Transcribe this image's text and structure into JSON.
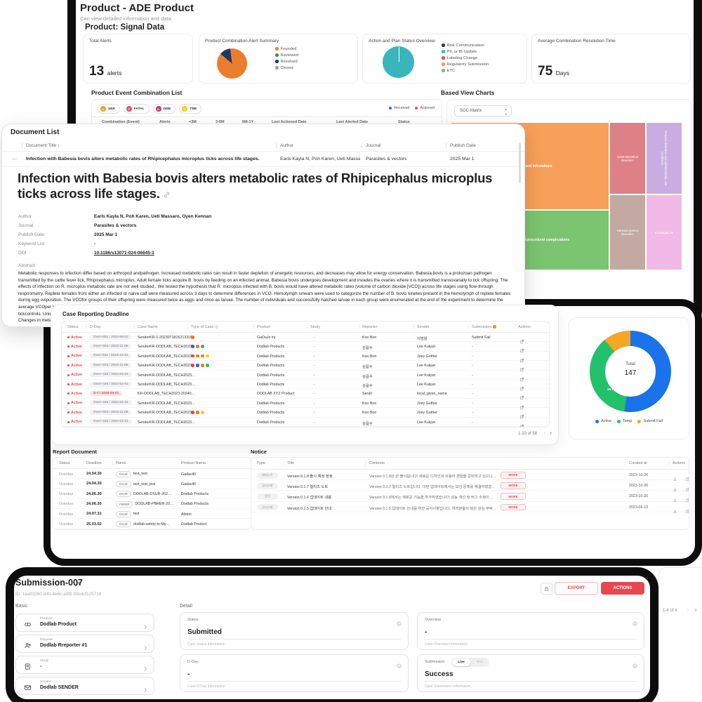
{
  "dashboard": {
    "title": "Product - ADE Product",
    "subtitle": "Can view detailed information and data.",
    "section_title": "Product: Signal Data",
    "cards": {
      "total_alerts": {
        "label": "Total Alerts",
        "value": "13",
        "unit": "alerts"
      },
      "alert_summary": {
        "label": "Product Combination Alert Summary",
        "pie": {
          "values": [
            12,
            88
          ],
          "colors": [
            "#1e3a5f",
            "#ed7d2e"
          ],
          "from_deg": -50
        },
        "legend": [
          {
            "label": "Founded",
            "color": "#ed7d2e"
          },
          {
            "label": "Reviewed",
            "color": "#3a915f"
          },
          {
            "label": "Resolved",
            "color": "#1e3a5f"
          },
          {
            "label": "Closed",
            "color": "#9aa0a6"
          }
        ]
      },
      "action_plan": {
        "label": "Action and Plan Status Overview",
        "pie": {
          "values": [
            100
          ],
          "colors": [
            "#3ab5bc"
          ]
        },
        "legend": [
          {
            "label": "Risk Communication",
            "color": "#1e3a5f"
          },
          {
            "label": "PIL or IB Update",
            "color": "#3ab5bc"
          },
          {
            "label": "Labeling Change",
            "color": "#e8505b"
          },
          {
            "label": "Regulatory Submission",
            "color": "#f0955a"
          },
          {
            "label": "ETC",
            "color": "#9aa0a6"
          }
        ]
      },
      "resolution_time": {
        "label": "Average Combination Resolution Time",
        "value": "75",
        "unit": "Days"
      }
    },
    "combination_list": {
      "title": "Product Event Combination List",
      "badges": [
        {
          "letter": "S",
          "label": "SER",
          "color": "#f59b2d"
        },
        {
          "letter": "F",
          "label": "FATAL",
          "color": "#e8505b"
        },
        {
          "letter": "D",
          "label": "DME",
          "color": "#d6336c"
        },
        {
          "letter": "T",
          "label": "TME",
          "color": "#f2d024"
        }
      ],
      "legend": [
        {
          "label": "Received",
          "color": "#2563eb"
        },
        {
          "label": "Actioned",
          "color": "#e8505b"
        }
      ],
      "columns": [
        "Combination (Event)",
        "Alerts",
        "<3M",
        "3-6M",
        "6M-1Y",
        "Last Actioned Date",
        "Last Alerted Date",
        "Status"
      ]
    },
    "based_view": {
      "title": "Based View Charts",
      "dropdown_value": "SOC-Matrix",
      "treemap": [
        {
          "label": "Infections and infestations",
          "color": "#f7a059"
        },
        {
          "label": "Injury, poisoning and procedural complications",
          "color": "#7bc470"
        },
        {
          "label": "Gastrointestinal disorders",
          "color": "#dd8186"
        },
        {
          "label": "Nervous system disorders",
          "color": "#c2a9a1"
        },
        {
          "label": "General disorders and administration site conditions",
          "color": "#c9ade0"
        },
        {
          "label": "Investigations",
          "color": "#f0b9e6"
        }
      ]
    }
  },
  "document_list": {
    "title": "Document List",
    "columns": [
      "Document Title",
      "Author",
      "Journal",
      "Publish Date"
    ],
    "sort_icon": "↓",
    "row": {
      "title": "Infection with Babesia bovis alters metabolic rates of Rhipicephalus microplus ticks across life stages.",
      "author": "Earls Kayla N, Poh Karen, Ueti Massaro, Oy...",
      "journal": "Parasites & vectors",
      "publish_date": "2025 Mar 1"
    },
    "article": {
      "title": "Infection with Babesia bovis alters metabolic rates of Rhipicephalus microplus ticks across life stages.",
      "meta": [
        {
          "label": "Author",
          "value": "Earls Kayla N, Poh Karen, Ueti Massaro, Oyen Kennan",
          "link": false
        },
        {
          "label": "Journal",
          "value": "Parasites & vectors",
          "link": false
        },
        {
          "label": "Publish Date",
          "value": "2025 Mar 1",
          "link": false
        },
        {
          "label": "Keyword List",
          "value": "-",
          "link": false
        },
        {
          "label": "DOI",
          "value": "10.1186/s13071-024-06645-3",
          "link": true
        }
      ],
      "abstract_label": "Abstract",
      "abstract": "Metabolic responses to infection differ based on arthropod andpathogen. Increased metabolic rates can result in faster depletion of energetic resources, and decreases may allow for energy conservation. Babesia bovis is a protozoan pathogen transmitted by the cattle fever tick, Rhipicephalus microplus. Adult female ticks acquire B. bovis by feeding on an infected animal. Babesia bovis undergoes development and invades the ovaries where it is transmitted transovarially to tick offspring. The effects of infection on R. microplus metabolic rate are not well studied., We tested the hypothesis that R. microplus infected with B. bovis would have altered metabolic rates (volume of carbon dioxide [VCO]) across life stages using flow-through respirometry. Replete females from either an infected or naive calf were measured across 3 days to determine differences in VCO. Hemolymph smears were used to categorize the number of B. bovis kinetes present in the hemolymph of replete females during egg oviposition. The VCOfor groups of their offspring were measured twice as eggs and once as larvae. The number of individuals and successfully hatched larvae in each group were enumerated at the end of the experiment to determine the average VCOper individual., Infected replete females have decreased VCOwhile their offspring have increased VCOat the egg and larval stages. Interestingly, replete females had a 25% reduction in body mass compared to uninfected female tickcontrols. Uninfected larvae were twice as likely to hatch than larvae from infected replete female ticks., VCOvaried between",
      "abstract_tail": "Changes in metab"
    }
  },
  "case_reporting": {
    "title": "Case Reporting Deadline",
    "columns": [
      "Status",
      "D-Day",
      "Case Name",
      "Type of Case",
      "Product",
      "Study",
      "Reporter",
      "Sender",
      "Submission",
      "Actions"
    ],
    "type_colors": {
      "orange": "#f97316",
      "blue": "#2563eb",
      "green": "#22c55e",
      "red": "#ef4444",
      "yellow": "#facc15"
    },
    "rows": [
      {
        "status": "Active",
        "dday": "Over+601 / 2023-08-02",
        "alert": false,
        "case_name": "SenderKR-1-2023071815213316",
        "types": [
          "orange"
        ],
        "product": "GaDaJo inj",
        "study": "-",
        "reporter": "Koo Bon",
        "sender": "이방원",
        "submission": "Submit Fail"
      },
      {
        "status": "Active",
        "dday": "Over+503 / 2023-11-08",
        "alert": false,
        "case_name": "SenderKR-DODLAB_TECH2023...",
        "types": [
          "blue",
          "orange",
          "green"
        ],
        "product": "Dodlab Products",
        "study": "-",
        "reporter": "김길수",
        "sender": "Lee Kukjun",
        "submission": "-"
      },
      {
        "status": "Active",
        "dday": "Over+511 / 2023-10-31",
        "alert": false,
        "case_name": "SenderKR-DODLAB_TECH2023...",
        "types": [
          "red",
          "orange",
          "orange",
          "yellow"
        ],
        "product": "Dodlab Products",
        "study": "-",
        "reporter": "Koo Bon",
        "sender": "Joey Gother",
        "submission": "-"
      },
      {
        "status": "Active",
        "dday": "Over+503 / 2023-11-08",
        "alert": false,
        "case_name": "SenderKR-DODLAB_TECH2023...",
        "types": [
          "red",
          "blue",
          "orange",
          "green"
        ],
        "product": "Dodlab Products",
        "study": "-",
        "reporter": "김길수",
        "sender": "Lee Kukjun",
        "submission": "-"
      },
      {
        "status": "Active",
        "dday": "Over+449 / 2024-01-01",
        "alert": false,
        "case_name": "SenderKR-DODLAB_TECH2023...",
        "types": [],
        "product": "Dodlab Products",
        "study": "-",
        "reporter": "김길수",
        "sender": "Lee Kukjun",
        "submission": "-"
      },
      {
        "status": "Active",
        "dday": "Over+449 / 2024-01-01",
        "alert": false,
        "case_name": "SenderKR-DODLAB_TECH2023...",
        "types": [],
        "product": "Dodlab Products",
        "study": "-",
        "reporter": "김길수",
        "sender": "Lee Kukjun",
        "submission": "-"
      },
      {
        "status": "Active",
        "dday": "D-7 / 2025-04-01",
        "alert": true,
        "case_name": "KR-DODLAB_TECH2023-20240...",
        "types": [],
        "product": "DODLAB XYZ Product",
        "study": "-",
        "reporter": "Sarah",
        "sender": "local_given_name",
        "submission": "-"
      },
      {
        "status": "Active",
        "dday": "Over+449 / 2024-01-01",
        "alert": false,
        "case_name": "SenderKR-DODLAB_TECH2023...",
        "types": [],
        "product": "Dodlab Products",
        "study": "-",
        "reporter": "Koo Bon",
        "sender": "Joey Gother",
        "submission": "-"
      },
      {
        "status": "Active",
        "dday": "Over+503 / 2023-11-08",
        "alert": false,
        "case_name": "SenderKR-DODLAB_TECH2023...",
        "types": [
          "red",
          "orange",
          "yellow"
        ],
        "product": "Dodlab Products",
        "study": "-",
        "reporter": "Koo Bon",
        "sender": "Joey Gother",
        "submission": "-"
      },
      {
        "status": "Active",
        "dday": "Over+449 / 2024-01-01",
        "alert": false,
        "case_name": "SenderKR-DODLAB_TECH2023...",
        "types": [],
        "product": "Dodlab Products",
        "study": "-",
        "reporter": "김길수",
        "sender": "Lee Kukjun",
        "submission": "-"
      }
    ],
    "pagination": "1-10 of 58"
  },
  "summary_donut": {
    "type": "donut",
    "total_label": "Total",
    "total": "147",
    "slices": [
      {
        "label": "Active",
        "pct": 52.4,
        "color": "#1a73e8"
      },
      {
        "label": "Temp",
        "pct": 36.7,
        "color": "#23c16b"
      },
      {
        "label": "Submit Fail",
        "pct": 10.9,
        "color": "#f5a623"
      }
    ]
  },
  "report_document": {
    "title": "Report Document",
    "columns": [
      "Status",
      "Deadline",
      "Name",
      "Product Name"
    ],
    "rows": [
      {
        "status": "Overdue",
        "deadline": "24.04.30",
        "tag": "DSUR",
        "name": "test_test",
        "product": "Gadavil9"
      },
      {
        "status": "Overdue",
        "deadline": "24.04.30",
        "tag": "DSUR",
        "name": "test_test_test",
        "product": "Gadavil9"
      },
      {
        "status": "Overdue",
        "deadline": "24.06.30",
        "tag": "DSUR",
        "name": "DODLAB-DSUR-202409",
        "product": "Dodlab Products"
      },
      {
        "status": "Overdue",
        "deadline": "24.06.30",
        "tag": "PBRER",
        "name": "DODLAB-PBRER-202409",
        "product": "Dodlab Products"
      },
      {
        "status": "Overdue",
        "deadline": "24.07.31",
        "tag": "DSUR",
        "name": "test",
        "product": "Albion"
      },
      {
        "status": "Overdue",
        "deadline": "25.03.02",
        "tag": "DSUR",
        "name": "dodlab-safety-to-MyCompany",
        "product": "Dodlab Product"
      }
    ]
  },
  "notice": {
    "title": "Notice",
    "columns": [
      "Type",
      "Title",
      "Contents",
      "Created at",
      "Actions"
    ],
    "more_label": "MORE",
    "rows": [
      {
        "type": "베타노트",
        "title": "Version 0.1.8 출시 예정 정정",
        "contents": "Version 0.1.8은 곧 출시됩니다! 새로운 디자인과 사용자 경험을 준비하고 있으니, 기대해주세요! ...",
        "created": "2023-10-20"
      },
      {
        "type": "공지사항",
        "title": "Version 0.1.7 릴리즈 노트",
        "contents": "Version 0.1.7 릴리즈 노트입니다. 이번 업데이트에서는 보안 문제를 해결하였습니다. 사용 중 불편...",
        "created": "2023-10-20"
      },
      {
        "type": "정정",
        "title": "Version 0.1.6 업데이트 내용",
        "contents": "Version 0.1.6에서는 새로운 기능을 추가하였습니다! 성능 개선 및 버그 수정이 포함되어 있습니다...",
        "created": "2023-10-20"
      },
      {
        "type": "공지사항",
        "title": "Version 0.1.5 업데이트 안내",
        "contents": "Version 0.1.5 업데이트 안내를 위한 공지사항입니다. 여러분들의 많은 관심 부탁드립니다 감사합...",
        "created": "2023-06-19"
      }
    ]
  },
  "submission": {
    "title": "Submission-007",
    "id": "ID: 1ea93260-d4b-4e6c-a9f8-09cdcf125718",
    "export_label": "EXPORT",
    "actions_label": "ACTIONS",
    "basic": {
      "label": "Basic",
      "items": [
        {
          "label": "Product",
          "value": "Dodlab Product",
          "icon": "pill"
        },
        {
          "label": "Reporter",
          "value": "Dodlab Rreporter #1",
          "icon": "person"
        },
        {
          "label": "Study",
          "value": "-",
          "icon": "document"
        },
        {
          "label": "Sender",
          "value": "Dodlab SENDER",
          "icon": "mail"
        }
      ]
    },
    "detail": {
      "label": "Detail",
      "cards": [
        {
          "label": "Status",
          "value": "Submitted",
          "helper": "Case Status Information"
        },
        {
          "label": "Overview",
          "value": "-",
          "helper": "Case Overview Information"
        },
        {
          "label": "D-Day",
          "value": "-",
          "helper": "Case D-Day Information"
        },
        {
          "label": "Submission",
          "value": "Success",
          "helper": "Case Submission Information",
          "toggle": [
            "Live",
            "Test"
          ]
        }
      ]
    }
  },
  "side_panel": {
    "pagination": "1-4 of 4"
  }
}
